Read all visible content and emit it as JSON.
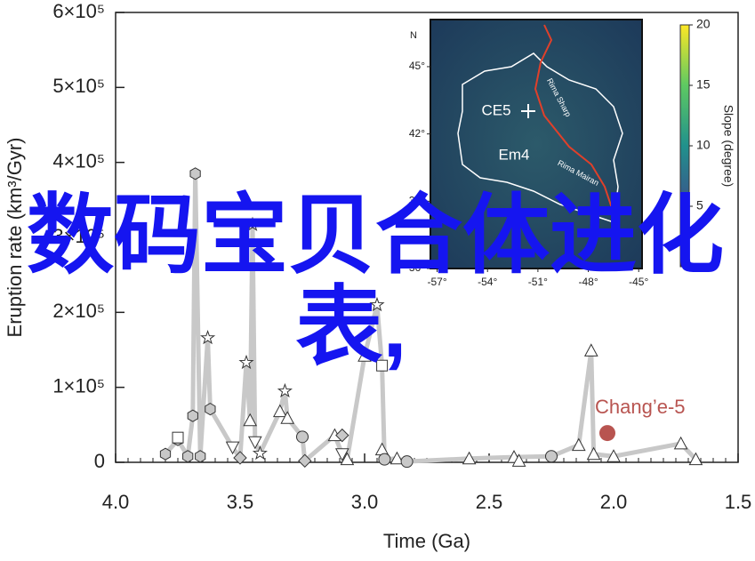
{
  "chart_data": {
    "type": "scatter",
    "title": "数码宝贝合体进化表,",
    "xlabel": "Time (Ga)",
    "ylabel": "Eruption rate (km³/Gyr)",
    "annotation": "Chang’e-5",
    "xlim": [
      4.0,
      1.5
    ],
    "xticks": [
      {
        "value": 4.0,
        "label": "4.0"
      },
      {
        "value": 3.5,
        "label": "3.5"
      },
      {
        "value": 3.0,
        "label": "3.0"
      },
      {
        "value": 2.5,
        "label": "2.5"
      },
      {
        "value": 2.0,
        "label": "2.0"
      },
      {
        "value": 1.5,
        "label": "1.5"
      }
    ],
    "ylim": [
      0,
      600000
    ],
    "yticks": [
      {
        "value": 0,
        "label": "0"
      },
      {
        "value": 100000,
        "label": "1×10⁵"
      },
      {
        "value": 200000,
        "label": "2×10⁵"
      },
      {
        "value": 300000,
        "label": "3×10⁵"
      },
      {
        "value": 400000,
        "label": "4×10⁵"
      },
      {
        "value": 500000,
        "label": "5×10⁵"
      },
      {
        "value": 600000,
        "label": "6×10⁵"
      }
    ],
    "series": [
      {
        "marker": "line",
        "color": "#c8c8c8",
        "x": [
          3.8,
          3.75,
          3.71,
          3.69,
          3.68,
          3.66,
          3.63,
          3.62,
          3.53,
          3.5,
          3.475,
          3.46,
          3.45,
          3.44,
          3.42,
          3.34,
          3.32,
          3.31,
          3.25,
          3.24,
          3.12,
          3.09,
          3.07,
          3.0,
          2.95,
          2.93,
          2.92,
          2.87,
          2.83,
          2.58,
          2.4,
          2.25,
          2.14,
          2.09,
          2.08,
          2.0,
          1.73,
          1.67
        ],
        "values": [
          11000,
          30000,
          8000,
          62000,
          385000,
          8000,
          166000,
          71000,
          20000,
          6000,
          133000,
          56000,
          317000,
          27000,
          12000,
          68000,
          95000,
          59000,
          34000,
          2000,
          36000,
          11000,
          4000,
          142000,
          210000,
          129000,
          4000,
          5000,
          1000,
          5000,
          7000,
          8000,
          23000,
          149000,
          11000,
          8000,
          25000,
          4000
        ]
      },
      {
        "marker": "hexagon",
        "color": "#c8c8c8",
        "x": [
          3.68,
          3.69,
          3.62,
          3.75,
          3.8,
          3.71,
          3.66
        ],
        "values": [
          385000,
          62000,
          71000,
          30000,
          11000,
          8000,
          8000
        ]
      },
      {
        "marker": "star",
        "color": "#ffffff",
        "x": [
          3.45,
          3.63,
          3.475,
          3.32,
          2.95,
          3.42
        ],
        "values": [
          317000,
          166000,
          133000,
          95000,
          210000,
          12000
        ]
      },
      {
        "marker": "triangle",
        "color": "#ffffff",
        "x": [
          3.46,
          3.34,
          3.31,
          3.0,
          2.93,
          2.09,
          2.14,
          1.73,
          2.87,
          2.58,
          2.4,
          2.38,
          2.0,
          1.67,
          2.08,
          3.12,
          3.07
        ],
        "values": [
          56000,
          68000,
          59000,
          142000,
          17000,
          149000,
          23000,
          25000,
          5000,
          5000,
          7000,
          2000,
          8000,
          4000,
          11000,
          36000,
          4000
        ]
      },
      {
        "marker": "triangle-down",
        "color": "#ffffff",
        "x": [
          3.53,
          3.44,
          3.09
        ],
        "values": [
          20000,
          27000,
          11000
        ]
      },
      {
        "marker": "diamond",
        "color": "#c8c8c8",
        "x": [
          3.5,
          3.24,
          3.09
        ],
        "values": [
          6000,
          2000,
          36000
        ]
      },
      {
        "marker": "circle",
        "color": "#c8c8c8",
        "x": [
          3.25,
          2.92,
          2.83,
          2.25
        ],
        "values": [
          34000,
          4000,
          1000,
          8000
        ]
      },
      {
        "marker": "square",
        "color": "#ffffff",
        "x": [
          2.93,
          3.75
        ],
        "values": [
          129000,
          33000
        ]
      },
      {
        "marker": "dot",
        "color": "#b85450",
        "x": [
          2.025
        ],
        "values": [
          39000
        ]
      }
    ],
    "inset": {
      "labels": [
        "CE5",
        "Em4",
        "Rima Sharp",
        "Rima Mairan",
        "N"
      ],
      "xlim": [
        -57.4,
        -44.8
      ],
      "xticks": [
        {
          "value": -57,
          "label": "-57°"
        },
        {
          "value": -54,
          "label": "-54°"
        },
        {
          "value": -51,
          "label": "-51°"
        },
        {
          "value": -48,
          "label": "-48°"
        },
        {
          "value": -45,
          "label": "-45°"
        }
      ],
      "ylim": [
        36,
        47.1
      ],
      "yticks": [
        {
          "value": 45,
          "label": "45°"
        },
        {
          "value": 42,
          "label": "42°"
        },
        {
          "value": 39,
          "label": "39°"
        },
        {
          "value": 36,
          "label": "36°"
        }
      ],
      "colorbar_label": "Slope (degree)",
      "colorbar_lim": [
        0,
        20
      ],
      "colorbar_ticks": [
        20,
        15,
        10,
        5
      ]
    }
  }
}
